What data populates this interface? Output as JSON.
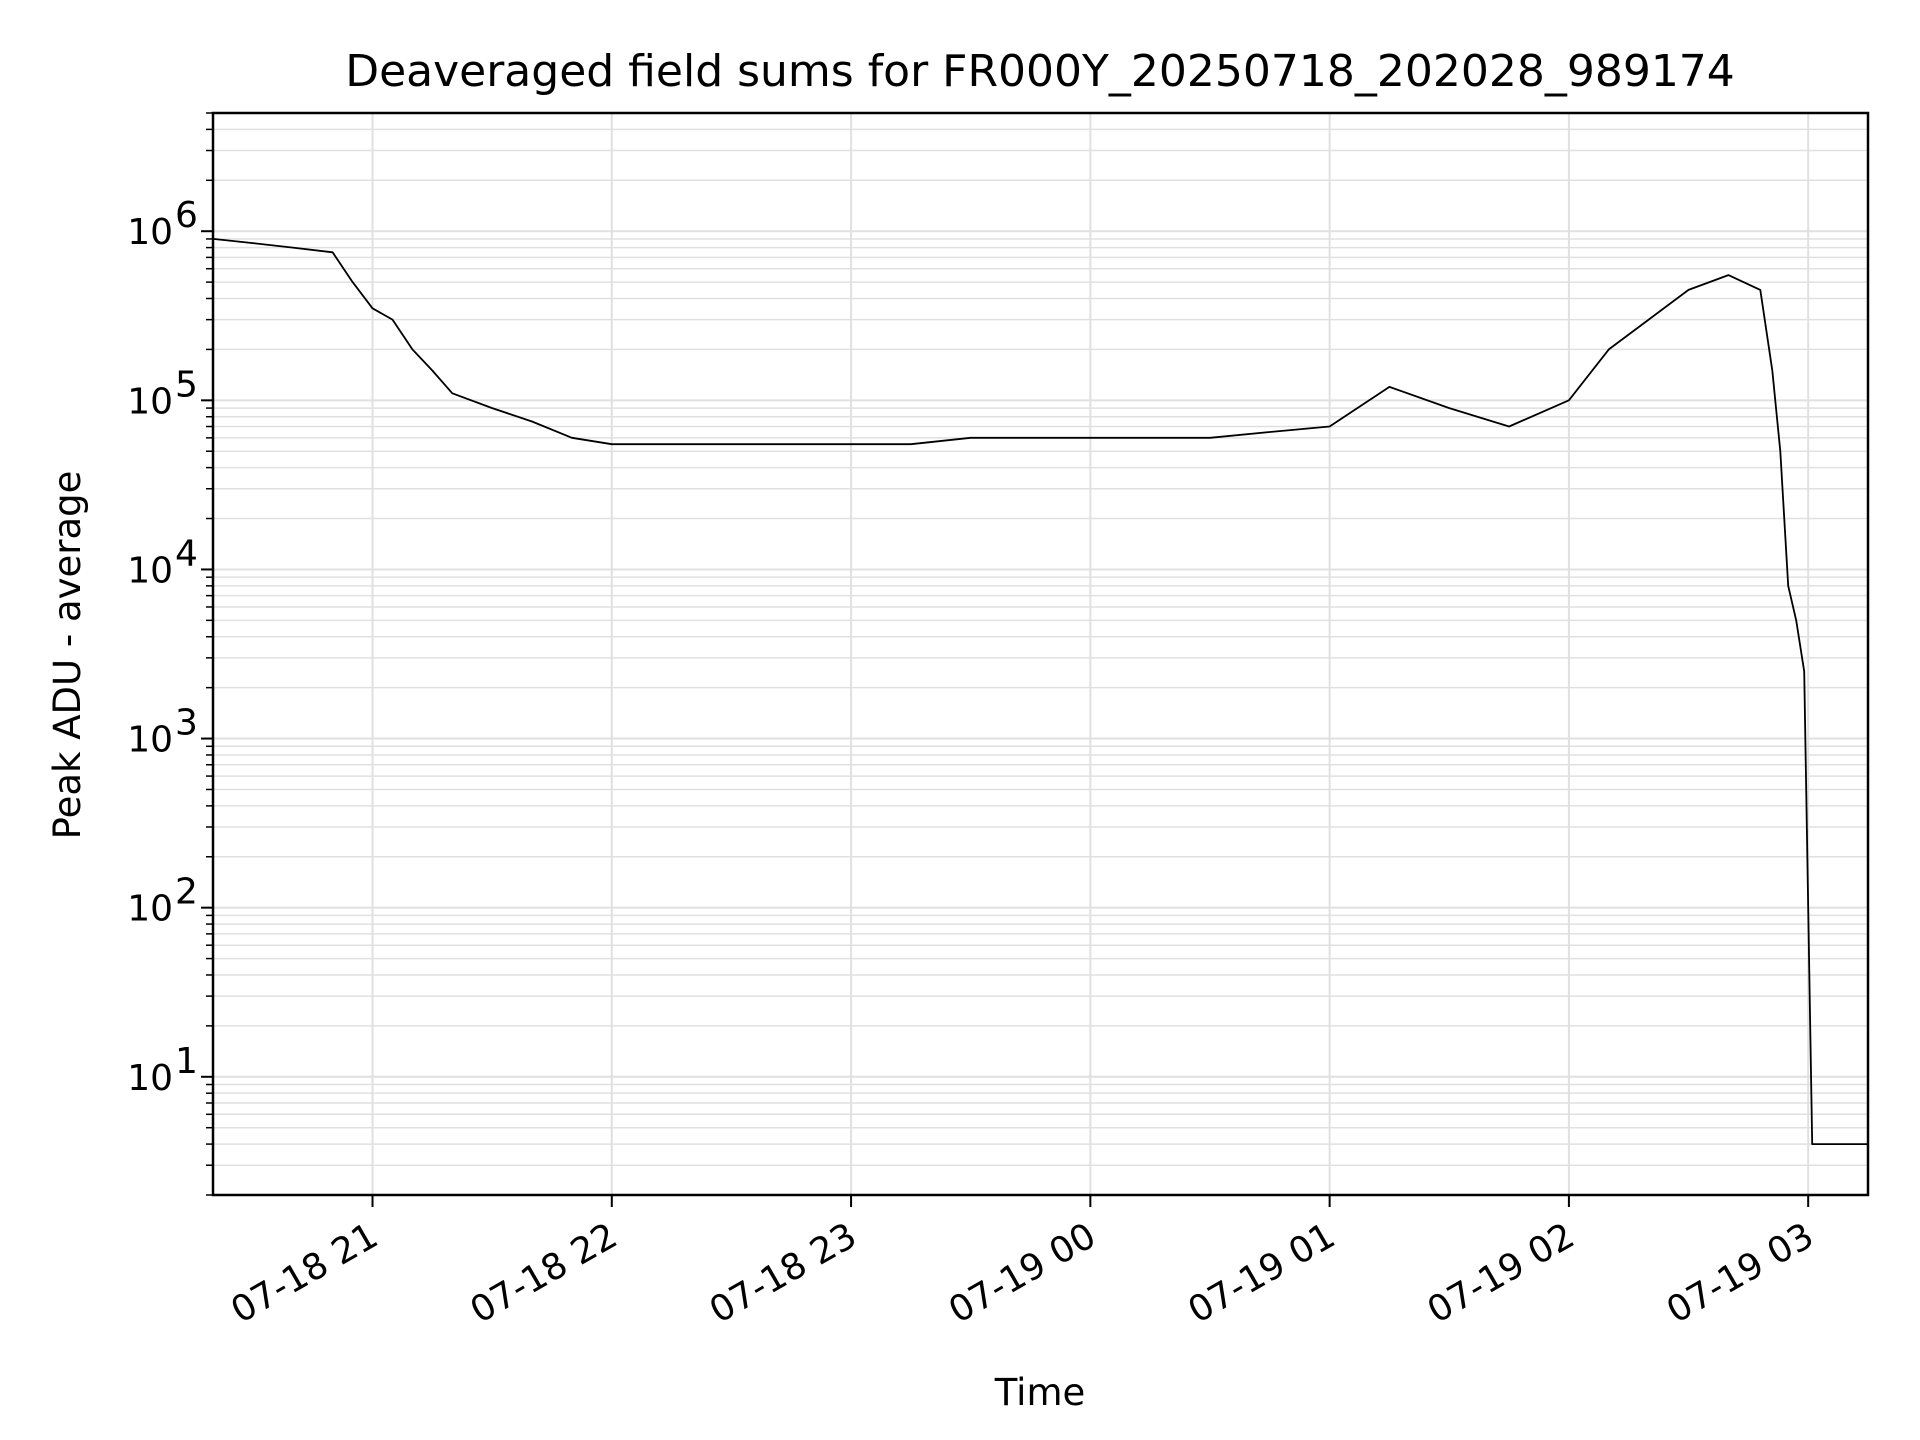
{
  "chart_data": {
    "type": "line",
    "title": "Deaveraged field sums for FR000Y_20250718_202028_989174",
    "xlabel": "Time",
    "ylabel": "Peak ADU - average",
    "y_scale": "log",
    "ylim": [
      2,
      5000000
    ],
    "xlim": [
      "2025-07-18 20:20",
      "2025-07-19 03:15"
    ],
    "grid": true,
    "grid_minor": true,
    "legend": "none",
    "line_color": "#000000",
    "grid_color": "#e0e0e0",
    "x_ticks": [
      {
        "t": "2025-07-18 21:00",
        "label": "07-18 21"
      },
      {
        "t": "2025-07-18 22:00",
        "label": "07-18 22"
      },
      {
        "t": "2025-07-18 23:00",
        "label": "07-18 23"
      },
      {
        "t": "2025-07-19 00:00",
        "label": "07-19 00"
      },
      {
        "t": "2025-07-19 01:00",
        "label": "07-19 01"
      },
      {
        "t": "2025-07-19 02:00",
        "label": "07-19 02"
      },
      {
        "t": "2025-07-19 03:00",
        "label": "07-19 03"
      }
    ],
    "y_ticks": [
      {
        "value": 10,
        "base": "10",
        "exp": "1"
      },
      {
        "value": 100,
        "base": "10",
        "exp": "2"
      },
      {
        "value": 1000,
        "base": "10",
        "exp": "3"
      },
      {
        "value": 10000,
        "base": "10",
        "exp": "4"
      },
      {
        "value": 100000,
        "base": "10",
        "exp": "5"
      },
      {
        "value": 1000000,
        "base": "10",
        "exp": "6"
      }
    ],
    "series": [
      {
        "x": [
          "2025-07-18 20:20",
          "2025-07-18 20:30",
          "2025-07-18 20:40",
          "2025-07-18 20:50",
          "2025-07-18 20:55",
          "2025-07-18 21:00",
          "2025-07-18 21:05",
          "2025-07-18 21:10",
          "2025-07-18 21:15",
          "2025-07-18 21:20",
          "2025-07-18 21:30",
          "2025-07-18 21:40",
          "2025-07-18 21:50",
          "2025-07-18 22:00",
          "2025-07-18 22:15",
          "2025-07-18 22:30",
          "2025-07-18 22:45",
          "2025-07-18 23:00",
          "2025-07-18 23:15",
          "2025-07-18 23:30",
          "2025-07-18 23:45",
          "2025-07-19 00:00",
          "2025-07-19 00:15",
          "2025-07-19 00:30",
          "2025-07-19 00:45",
          "2025-07-19 01:00",
          "2025-07-19 01:15",
          "2025-07-19 01:30",
          "2025-07-19 01:45",
          "2025-07-19 02:00",
          "2025-07-19 02:10",
          "2025-07-19 02:20",
          "2025-07-19 02:30",
          "2025-07-19 02:40",
          "2025-07-19 02:48",
          "2025-07-19 02:51",
          "2025-07-19 02:53",
          "2025-07-19 02:55",
          "2025-07-19 02:57",
          "2025-07-19 02:59",
          "2025-07-19 03:00",
          "2025-07-19 03:01",
          "2025-07-19 03:05",
          "2025-07-19 03:10",
          "2025-07-19 03:15"
        ],
        "y": [
          900000,
          850000,
          800000,
          750000,
          500000,
          350000,
          300000,
          200000,
          150000,
          110000,
          90000,
          75000,
          60000,
          55000,
          55000,
          55000,
          55000,
          55000,
          55000,
          60000,
          60000,
          60000,
          60000,
          60000,
          65000,
          70000,
          120000,
          90000,
          70000,
          100000,
          200000,
          300000,
          450000,
          550000,
          450000,
          150000,
          50000,
          8000,
          5000,
          2500,
          100,
          4,
          4,
          4,
          4
        ]
      }
    ]
  }
}
